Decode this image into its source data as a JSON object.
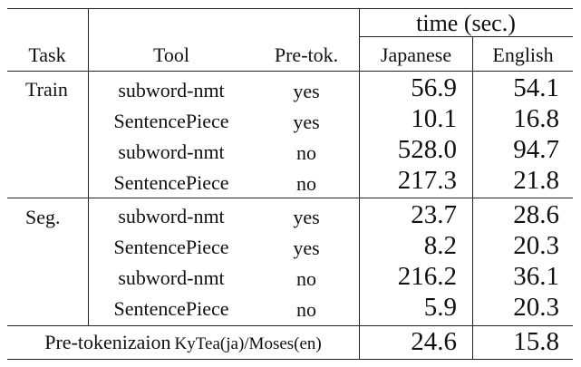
{
  "header": {
    "task": "Task",
    "tool": "Tool",
    "pretok": "Pre-tok.",
    "time": "time (sec.)",
    "japanese": "Japanese",
    "english": "English"
  },
  "train": {
    "task_label": "Train",
    "rows": [
      {
        "tool": "subword-nmt",
        "pretok": "yes",
        "ja": "56.9",
        "en": "54.1"
      },
      {
        "tool": "SentencePiece",
        "pretok": "yes",
        "ja": "10.1",
        "en": "16.8"
      },
      {
        "tool": "subword-nmt",
        "pretok": "no",
        "ja": "528.0",
        "en": "94.7"
      },
      {
        "tool": "SentencePiece",
        "pretok": "no",
        "ja": "217.3",
        "en": "21.8"
      }
    ]
  },
  "seg": {
    "task_label": "Seg.",
    "rows": [
      {
        "tool": "subword-nmt",
        "pretok": "yes",
        "ja": "23.7",
        "en": "28.6"
      },
      {
        "tool": "SentencePiece",
        "pretok": "yes",
        "ja": "8.2",
        "en": "20.3"
      },
      {
        "tool": "subword-nmt",
        "pretok": "no",
        "ja": "216.2",
        "en": "36.1"
      },
      {
        "tool": "SentencePiece",
        "pretok": "no",
        "ja": "5.9",
        "en": "20.3"
      }
    ]
  },
  "footer": {
    "label_main": "Pre-tokenizaion",
    "label_small": "KyTea(ja)/Moses(en)",
    "ja": "24.6",
    "en": "15.8"
  }
}
